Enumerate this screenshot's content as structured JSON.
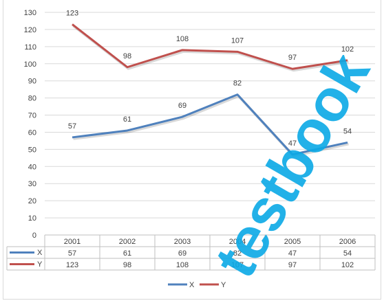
{
  "chart_data": {
    "type": "line",
    "title": "",
    "xlabel": "",
    "ylabel": "",
    "categories": [
      "2001",
      "2002",
      "2003",
      "2004",
      "2005",
      "2006"
    ],
    "ylim": [
      0,
      130
    ],
    "ytick_step": 10,
    "grid": true,
    "legend_position": "bottom",
    "data_table": true,
    "series": [
      {
        "name": "X",
        "values": [
          57,
          61,
          69,
          82,
          47,
          54
        ],
        "color": "#4f81bd"
      },
      {
        "name": "Y",
        "values": [
          123,
          98,
          108,
          107,
          97,
          102
        ],
        "color": "#c0504d"
      }
    ]
  },
  "watermark_text": "testbook",
  "watermark_color": "#0aa8e6"
}
